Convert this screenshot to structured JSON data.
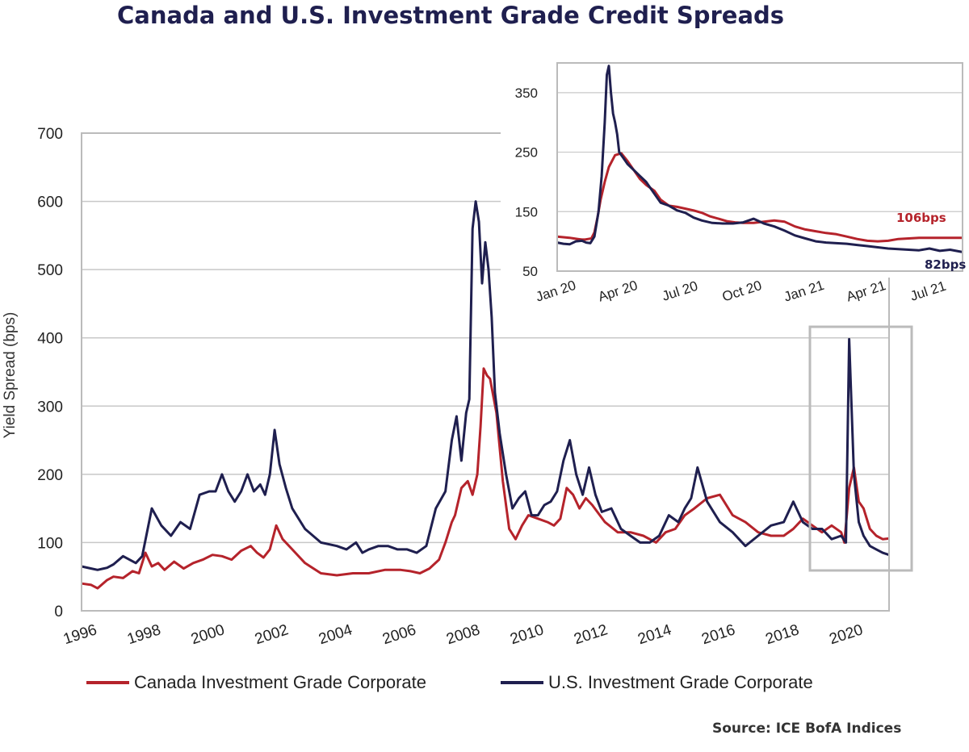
{
  "title": "Canada and U.S. Investment Grade Credit Spreads",
  "source": "Source: ICE BofA Indices",
  "colors": {
    "canada": "#b5232b",
    "us": "#1f1f4f",
    "grid": "#c8c8c8",
    "frame": "#bbbbbb"
  },
  "chart_data": [
    {
      "type": "line",
      "ylabel": "Yield Spread (bps)",
      "ylim": [
        0,
        700
      ],
      "yticks": [
        0,
        100,
        200,
        300,
        400,
        500,
        600,
        700
      ],
      "xlim": [
        1996,
        2021.3
      ],
      "xticks": [
        1996,
        1998,
        2000,
        2002,
        2004,
        2006,
        2008,
        2010,
        2012,
        2014,
        2016,
        2018,
        2020
      ],
      "grid": "horizontal",
      "legend": "bottom",
      "series": [
        {
          "name": "Canada Investment Grade Corporate",
          "x": [
            1996.0,
            1996.3,
            1996.5,
            1996.8,
            1997.0,
            1997.3,
            1997.6,
            1997.8,
            1998.0,
            1998.2,
            1998.4,
            1998.6,
            1998.9,
            1999.2,
            1999.5,
            1999.8,
            2000.1,
            2000.4,
            2000.7,
            2001.0,
            2001.3,
            2001.5,
            2001.7,
            2001.9,
            2002.1,
            2002.3,
            2002.6,
            2003.0,
            2003.5,
            2004.0,
            2004.5,
            2005.0,
            2005.5,
            2006.0,
            2006.3,
            2006.6,
            2006.9,
            2007.2,
            2007.4,
            2007.6,
            2007.7,
            2007.9,
            2008.1,
            2008.25,
            2008.4,
            2008.5,
            2008.6,
            2008.7,
            2008.8,
            2009.0,
            2009.2,
            2009.4,
            2009.6,
            2009.8,
            2010.0,
            2010.3,
            2010.6,
            2010.8,
            2011.0,
            2011.2,
            2011.4,
            2011.6,
            2011.8,
            2012.0,
            2012.4,
            2012.8,
            2013.2,
            2013.6,
            2014.0,
            2014.3,
            2014.6,
            2014.9,
            2015.2,
            2015.6,
            2016.0,
            2016.4,
            2016.8,
            2017.2,
            2017.6,
            2018.0,
            2018.3,
            2018.6,
            2018.9,
            2019.2,
            2019.5,
            2019.8,
            2019.9,
            2020.05,
            2020.2,
            2020.35,
            2020.5,
            2020.7,
            2020.9,
            2021.1,
            2021.3
          ],
          "values": [
            40,
            38,
            33,
            45,
            50,
            48,
            58,
            55,
            85,
            65,
            70,
            60,
            72,
            62,
            70,
            75,
            82,
            80,
            75,
            88,
            95,
            85,
            78,
            90,
            125,
            105,
            90,
            70,
            55,
            52,
            55,
            55,
            60,
            60,
            58,
            55,
            62,
            75,
            100,
            130,
            140,
            180,
            190,
            170,
            200,
            270,
            355,
            345,
            340,
            290,
            190,
            120,
            105,
            125,
            140,
            135,
            130,
            125,
            135,
            180,
            170,
            150,
            165,
            155,
            130,
            115,
            115,
            110,
            100,
            115,
            120,
            140,
            150,
            165,
            170,
            140,
            130,
            115,
            110,
            110,
            120,
            135,
            125,
            115,
            125,
            115,
            100,
            180,
            210,
            160,
            150,
            120,
            110,
            105,
            106
          ]
        },
        {
          "name": "U.S. Investment Grade Corporate",
          "x": [
            1996.0,
            1996.3,
            1996.5,
            1996.8,
            1997.0,
            1997.3,
            1997.5,
            1997.7,
            1997.9,
            1998.2,
            1998.5,
            1998.8,
            1999.1,
            1999.4,
            1999.7,
            2000.0,
            2000.2,
            2000.4,
            2000.6,
            2000.8,
            2001.0,
            2001.2,
            2001.4,
            2001.6,
            2001.75,
            2001.9,
            2002.05,
            2002.2,
            2002.4,
            2002.6,
            2003.0,
            2003.5,
            2004.0,
            2004.3,
            2004.6,
            2004.8,
            2005.0,
            2005.3,
            2005.6,
            2005.9,
            2006.2,
            2006.5,
            2006.8,
            2007.1,
            2007.4,
            2007.6,
            2007.75,
            2007.9,
            2008.05,
            2008.15,
            2008.25,
            2008.35,
            2008.45,
            2008.55,
            2008.65,
            2008.75,
            2008.85,
            2008.95,
            2009.1,
            2009.3,
            2009.5,
            2009.7,
            2009.9,
            2010.1,
            2010.3,
            2010.5,
            2010.7,
            2010.9,
            2011.1,
            2011.3,
            2011.5,
            2011.7,
            2011.9,
            2012.1,
            2012.3,
            2012.6,
            2012.9,
            2013.2,
            2013.5,
            2013.8,
            2014.1,
            2014.4,
            2014.7,
            2014.9,
            2015.1,
            2015.3,
            2015.6,
            2016.0,
            2016.4,
            2016.8,
            2017.2,
            2017.6,
            2018.0,
            2018.3,
            2018.6,
            2018.9,
            2019.2,
            2019.5,
            2019.8,
            2019.95,
            2020.05,
            2020.2,
            2020.35,
            2020.5,
            2020.7,
            2020.9,
            2021.1,
            2021.3
          ],
          "values": [
            65,
            62,
            60,
            63,
            68,
            80,
            75,
            70,
            80,
            150,
            125,
            110,
            130,
            120,
            170,
            175,
            175,
            200,
            175,
            160,
            175,
            200,
            175,
            185,
            170,
            200,
            265,
            215,
            180,
            150,
            120,
            100,
            95,
            90,
            100,
            85,
            90,
            95,
            95,
            90,
            90,
            85,
            95,
            150,
            175,
            250,
            285,
            220,
            290,
            310,
            560,
            600,
            570,
            480,
            540,
            500,
            430,
            320,
            260,
            200,
            150,
            165,
            175,
            140,
            140,
            155,
            160,
            175,
            220,
            250,
            200,
            170,
            210,
            170,
            145,
            150,
            120,
            110,
            100,
            100,
            110,
            140,
            130,
            150,
            165,
            210,
            160,
            130,
            115,
            95,
            110,
            125,
            130,
            160,
            130,
            120,
            120,
            105,
            110,
            100,
            398,
            200,
            130,
            110,
            95,
            90,
            85,
            82
          ]
        }
      ]
    },
    {
      "type": "line",
      "ylim": [
        50,
        400
      ],
      "yticks": [
        50,
        150,
        250,
        350
      ],
      "xticks": [
        "Jan 20",
        "Apr 20",
        "Jul 20",
        "Oct 20",
        "Jan 21",
        "Apr 21",
        "Jul 21"
      ],
      "grid": "horizontal",
      "annotations": [
        "106bps",
        "82bps"
      ],
      "series": [
        {
          "x": [
            0.0,
            0.3,
            0.6,
            0.8,
            1.0,
            1.2,
            1.35,
            1.5,
            1.65,
            1.8,
            1.95,
            2.1,
            2.3,
            2.5,
            2.8,
            3.1,
            3.4,
            3.7,
            4.0,
            4.3,
            4.7,
            5.0,
            5.4,
            5.8,
            6.2,
            6.6,
            7.0,
            7.4,
            7.8,
            8.2,
            8.6,
            9.0,
            9.5,
            10.0,
            10.5,
            11.0,
            11.5,
            12.0,
            12.5,
            13.0,
            13.5,
            14.0,
            14.5,
            15.0,
            15.5,
            16.0,
            16.5,
            17.0,
            17.5,
            18.0,
            18.5,
            19.0,
            19.6
          ],
          "values": [
            108,
            107,
            106,
            105,
            104,
            103,
            103,
            104,
            105,
            115,
            140,
            170,
            200,
            225,
            245,
            248,
            235,
            220,
            205,
            195,
            185,
            170,
            160,
            158,
            155,
            152,
            148,
            142,
            138,
            134,
            132,
            131,
            131,
            133,
            135,
            133,
            125,
            120,
            117,
            114,
            112,
            108,
            104,
            101,
            100,
            101,
            104,
            105,
            106,
            106,
            106,
            106,
            106
          ]
        },
        {
          "x": [
            0.0,
            0.3,
            0.6,
            0.9,
            1.2,
            1.4,
            1.6,
            1.8,
            2.0,
            2.15,
            2.3,
            2.4,
            2.5,
            2.6,
            2.7,
            2.8,
            2.9,
            3.0,
            3.2,
            3.4,
            3.7,
            4.0,
            4.3,
            4.7,
            5.0,
            5.4,
            5.8,
            6.2,
            6.6,
            7.0,
            7.5,
            8.0,
            8.5,
            9.0,
            9.5,
            10.0,
            10.5,
            11.0,
            11.5,
            12.0,
            12.5,
            13.0,
            13.5,
            14.0,
            14.5,
            15.0,
            15.5,
            16.0,
            16.5,
            17.0,
            17.5,
            18.0,
            18.5,
            19.0,
            19.6
          ],
          "values": [
            98,
            96,
            95,
            100,
            101,
            98,
            97,
            108,
            150,
            210,
            300,
            380,
            395,
            350,
            315,
            300,
            280,
            250,
            240,
            230,
            220,
            210,
            200,
            180,
            165,
            160,
            152,
            148,
            140,
            135,
            131,
            130,
            130,
            132,
            138,
            130,
            125,
            118,
            110,
            105,
            100,
            98,
            97,
            96,
            94,
            92,
            90,
            88,
            87,
            86,
            85,
            88,
            84,
            86,
            82
          ]
        }
      ]
    }
  ]
}
